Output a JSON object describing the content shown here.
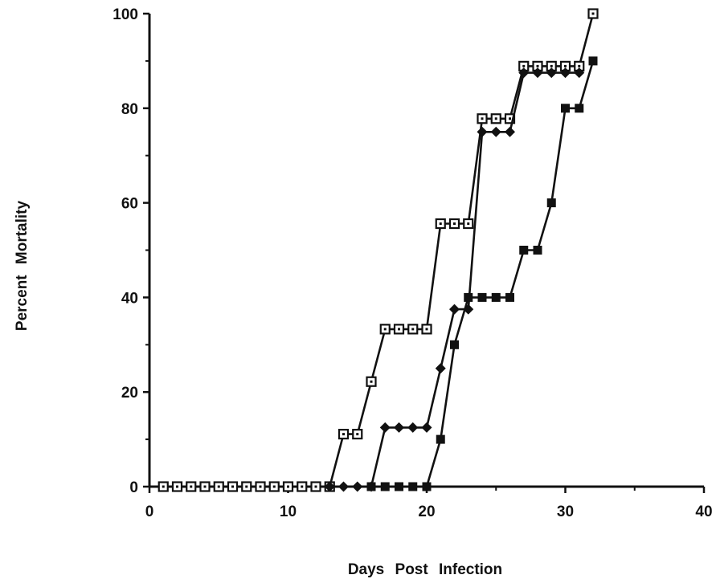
{
  "chart_data": {
    "type": "line",
    "title": "",
    "xlabel": "Days  Post  Infection",
    "ylabel": "Percent  Mortality",
    "xlim": [
      0,
      40
    ],
    "ylim": [
      0,
      100
    ],
    "x_ticks": [
      0,
      10,
      20,
      30,
      40
    ],
    "y_ticks": [
      0,
      20,
      40,
      60,
      80,
      100
    ],
    "x_tick_labels": [
      "0",
      "10",
      "20",
      "30",
      "40"
    ],
    "y_tick_labels": [
      "0",
      "20",
      "40",
      "60",
      "80",
      "100"
    ],
    "grid": false,
    "legend": "none",
    "colors": {
      "line": "#111111",
      "background": "#ffffff"
    },
    "series": [
      {
        "marker": "open-square",
        "x": [
          1,
          2,
          3,
          4,
          5,
          6,
          7,
          8,
          9,
          10,
          11,
          12,
          13,
          14,
          15,
          16,
          17,
          18,
          19,
          20,
          21,
          22,
          23,
          24,
          25,
          26,
          27,
          28,
          29,
          30,
          31,
          32
        ],
        "values": [
          0,
          0,
          0,
          0,
          0,
          0,
          0,
          0,
          0,
          0,
          0,
          0,
          0,
          11.1,
          11.1,
          22.2,
          33.3,
          33.3,
          33.3,
          33.3,
          55.6,
          55.6,
          55.6,
          77.8,
          77.8,
          77.8,
          88.9,
          88.9,
          88.9,
          88.9,
          88.9,
          100
        ]
      },
      {
        "marker": "filled-diamond",
        "x": [
          13,
          14,
          15,
          16,
          17,
          18,
          19,
          20,
          21,
          22,
          23,
          24,
          25,
          26,
          27,
          28,
          29,
          30,
          31
        ],
        "values": [
          0,
          0,
          0,
          0,
          12.5,
          12.5,
          12.5,
          12.5,
          25,
          37.5,
          37.5,
          75,
          75,
          75,
          87.5,
          87.5,
          87.5,
          87.5,
          87.5
        ]
      },
      {
        "marker": "filled-square",
        "x": [
          16,
          17,
          18,
          19,
          20,
          21,
          22,
          23,
          24,
          25,
          26,
          27,
          28,
          29,
          30,
          31,
          32
        ],
        "values": [
          0,
          0,
          0,
          0,
          0,
          10,
          30,
          40,
          40,
          40,
          40,
          50,
          50,
          60,
          80,
          80,
          90
        ]
      }
    ]
  }
}
